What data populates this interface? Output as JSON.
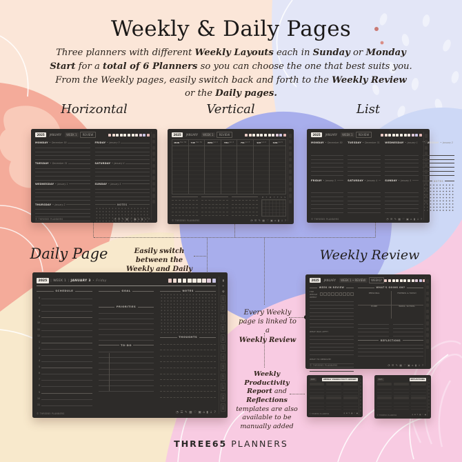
{
  "poster": {
    "title": "Weekly & Daily Pages",
    "intro_segments": [
      {
        "t": "Three planners with different ",
        "b": false
      },
      {
        "t": "Weekly Layouts",
        "b": true
      },
      {
        "t": " each in ",
        "b": false
      },
      {
        "t": "Sunday",
        "b": true
      },
      {
        "t": " or ",
        "b": false
      },
      {
        "t": "Monday Start",
        "b": true
      },
      {
        "t": " for a ",
        "b": false
      },
      {
        "t": "total of 6 Planners",
        "b": true
      },
      {
        "t": " so you can choose the one that best suits you. From the Weekly pages, easily switch back and forth to the ",
        "b": false
      },
      {
        "t": "Weekly Review",
        "b": true
      },
      {
        "t": " or the ",
        "b": false
      },
      {
        "t": "Daily pages.",
        "b": true
      }
    ],
    "section_labels": {
      "horizontal": "Horizontal",
      "vertical": "Vertical",
      "list": "List",
      "daily": "Daily Page",
      "review": "Weekly Review"
    },
    "brand": {
      "bold": "THREE65",
      "regular": "PLANNERS"
    },
    "palette": {
      "peach": "#fbe6d8",
      "salmon": "#f4ab9a",
      "cream": "#f8e9cc",
      "lavender": "#e3e6f7",
      "periwinkle": "#a8aeec",
      "light_blue": "#cdd8f6",
      "pink": "#f8cbe2",
      "ink": "#1b1918",
      "note_ink": "#33251c",
      "planner_dark": "#2d2b29"
    }
  },
  "annotations": {
    "switch_lines": [
      "Easily switch between the",
      "Weekly and Daily pages"
    ],
    "linked_lines": [
      {
        "t": "Every Weekly",
        "b": false
      },
      {
        "t": "page is linked to a",
        "b": false
      },
      {
        "t": "Weekly Review",
        "b": true
      }
    ],
    "templates_lines": [
      [
        {
          "t": "Weekly",
          "b": true
        }
      ],
      [
        {
          "t": "Productivity",
          "b": true
        }
      ],
      [
        {
          "t": "Report",
          "b": true
        },
        {
          "t": " and",
          "b": false
        }
      ],
      [
        {
          "t": "Reflections",
          "b": true
        }
      ],
      [
        {
          "t": "templates are also",
          "b": false
        }
      ],
      [
        {
          "t": "available to be",
          "b": false
        }
      ],
      [
        {
          "t": "manually added",
          "b": false
        }
      ]
    ]
  },
  "weekly": {
    "tabs": [
      {
        "label": "2025",
        "style": "lite"
      },
      {
        "label": "JANUARY",
        "style": "plain"
      },
      {
        "label": "WEEK 1",
        "style": "chip"
      },
      {
        "label": "REVIEW",
        "style": "ghost"
      }
    ],
    "days": [
      {
        "name": "MONDAY",
        "date": "December 30"
      },
      {
        "name": "TUESDAY",
        "date": "December 31"
      },
      {
        "name": "WEDNESDAY",
        "date": "January 1"
      },
      {
        "name": "THURSDAY",
        "date": "January 2"
      },
      {
        "name": "FRIDAY",
        "date": "January 3"
      },
      {
        "name": "SATURDAY",
        "date": "January 4"
      },
      {
        "name": "SUNDAY",
        "date": "January 5"
      }
    ],
    "short_days": [
      {
        "name": "MON",
        "date": "Dec 30"
      },
      {
        "name": "TUE",
        "date": "Dec 31"
      },
      {
        "name": "WED",
        "date": "Jan 1"
      },
      {
        "name": "THU",
        "date": "Jan 2"
      },
      {
        "name": "FRI",
        "date": "Jan 3"
      },
      {
        "name": "SAT",
        "date": "Jan 4"
      },
      {
        "name": "SUN",
        "date": "Jan 5"
      }
    ],
    "weekday_initials": [
      "M",
      "T",
      "W",
      "T",
      "F",
      "S",
      "S"
    ],
    "notes_label": "NOTES",
    "footer_brand": "© THREE65 PLANNERS",
    "footer_icons": [
      {
        "name": "clock-icon",
        "glyph": "◔"
      },
      {
        "name": "person-icon",
        "glyph": "☰"
      },
      {
        "name": "pen-icon",
        "glyph": "✎"
      },
      {
        "name": "grid-icon",
        "glyph": "▦"
      },
      {
        "name": "heart-icon",
        "glyph": "♡"
      },
      {
        "name": "calendar-icon",
        "glyph": "▣"
      },
      {
        "name": "home-icon",
        "glyph": "⌂"
      },
      {
        "name": "bookmark-icon",
        "glyph": "▮"
      },
      {
        "name": "download-icon",
        "glyph": "↓"
      },
      {
        "name": "help-icon",
        "glyph": "?"
      }
    ],
    "tab_square_colors": [
      "#e8c9c3",
      "#f0ddd3",
      "#f4ece2",
      "#f4ece2",
      "#f4ece2",
      "#f4ece2",
      "#f4ece2",
      "#f2e6e0",
      "#dfc9d8",
      "#c9c4e4",
      "#e3b7b4"
    ]
  },
  "daily": {
    "year": "2025",
    "separator": "|",
    "week": "WEEK 1",
    "date": "JANUARY 3",
    "bullet": "•",
    "weekday": "Friday",
    "sections": {
      "schedule": "SCHEDULE",
      "goal": "GOAL",
      "priorities": "PRIORITIES",
      "todo": "TO-DO",
      "notes": "NOTES",
      "thoughts": "THOUGHTS"
    },
    "hours": [
      "6",
      "7",
      "8",
      "9",
      "10",
      "11",
      "12",
      "1",
      "2",
      "3",
      "4",
      "5",
      "6",
      "7",
      "8",
      "9",
      "10",
      "11"
    ],
    "strip_icons": [
      {
        "name": "bookmark-icon",
        "glyph": "▮"
      },
      {
        "name": "plus-icon",
        "glyph": "+"
      },
      {
        "name": "gear-icon",
        "glyph": "✿"
      }
    ],
    "months": [
      "JAN",
      "FEB",
      "MAR",
      "APR",
      "MAY",
      "JUN",
      "JUL",
      "AUG",
      "SEP",
      "OCT",
      "NOV",
      "DEC"
    ]
  },
  "review": {
    "tabs": [
      {
        "label": "2025",
        "style": "lite"
      },
      {
        "label": "JANUARY",
        "style": "plain"
      },
      {
        "label": "WEEK 1 • REVIEW",
        "style": "chip"
      },
      {
        "label": "WEEKLY",
        "style": "ghost"
      }
    ],
    "week_in_review": "WEEK IN REVIEW",
    "rate_label": "THE WHOLE WEEK?",
    "left_prompt_2": "WHAT WAS LEFT?",
    "left_prompt_3": "WHAT TO IMPROVE?",
    "whats_going_on": "WHAT'S GOING ON?",
    "quadrants": [
      "PERSONAL",
      "FRIENDS & FAMILY",
      "HOME",
      "WORK, SCHOOL"
    ],
    "reflections": "REFLECTIONS"
  },
  "mini_templates": {
    "left_title": "WEEKLY PRODUCTIVITY REPORT",
    "right_title": "REFLECTIONS"
  }
}
